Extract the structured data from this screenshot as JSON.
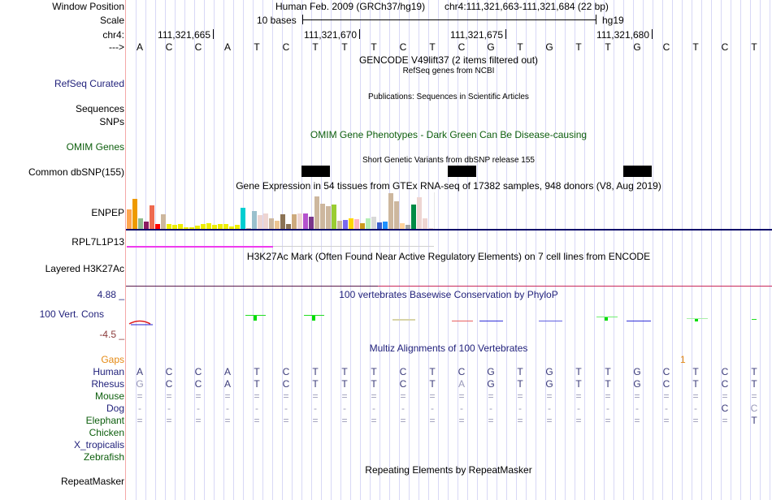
{
  "header": {
    "assembly": "Human Feb. 2009 (GRCh37/hg19)",
    "position": "chr4:111,321,663-111,321,684 (22 bp)",
    "scale_label": "10 bases",
    "scale_db": "hg19"
  },
  "labels": {
    "window_position": "Window Position",
    "scale": "Scale",
    "chrom": "chr4:",
    "strand": "--->",
    "refseq": "RefSeq Curated",
    "sequences": "Sequences",
    "snps": "SNPs",
    "omim": "OMIM Genes",
    "dbsnp": "Common dbSNP(155)",
    "enpep": "ENPEP",
    "rpl": "RPL7L1P13",
    "h3k27ac": "Layered H3K27Ac",
    "cons_max": "4.88 _",
    "cons": "100 Vert. Cons",
    "cons_min": "-4.5 _",
    "repeatmasker": "RepeatMasker"
  },
  "ruler": {
    "ticks": [
      "111,321,665",
      "111,321,670",
      "111,321,675",
      "111,321,680"
    ]
  },
  "sequence": [
    "A",
    "C",
    "C",
    "A",
    "T",
    "C",
    "T",
    "T",
    "T",
    "C",
    "T",
    "C",
    "G",
    "T",
    "G",
    "T",
    "T",
    "G",
    "C",
    "T",
    "C",
    "T"
  ],
  "track_titles": {
    "gencode": "GENCODE V49lift37 (2 items filtered out)",
    "refseq": "RefSeq genes from NCBI",
    "publications": "Publications: Sequences in Scientific Articles",
    "omim": "OMIM Gene Phenotypes - Dark Green Can Be Disease-causing",
    "dbsnp": "Short Genetic Variants from dbSNP release 155",
    "gtex": "Gene Expression in 54 tissues from GTEx RNA-seq of 17382 samples, 948 donors (V8, Aug 2019)",
    "h3k27ac": "H3K27Ac Mark (Often Found Near Active Regulatory Elements) on 7 cell lines from ENCODE",
    "phylop": "100 vertebrates Basewise Conservation by PhyloP",
    "multiz": "Multiz Alignments of 100 Vertebrates",
    "repeatmasker": "Repeating Elements by RepeatMasker"
  },
  "gtex_levels": [
    0.55,
    0.85,
    0.3,
    0.2,
    0.65,
    0.13,
    0.4,
    0.14,
    0.12,
    0.14,
    0.04,
    0.04,
    0.1,
    0.14,
    0.17,
    0.12,
    0.14,
    0.14,
    0.07,
    0.12,
    0.6,
    0.0,
    0.5,
    0.38,
    0.44,
    0.3,
    0.22,
    0.4,
    0.13,
    0.4,
    0.44,
    0.44,
    0.35,
    0.92,
    0.7,
    0.64,
    0.68,
    0.22,
    0.24,
    0.3,
    0.28,
    0.16,
    0.3,
    0.33,
    0.18,
    0.2,
    1.0,
    0.78,
    0.16,
    0.12,
    0.68,
    0.88,
    0.3,
    0.03
  ],
  "gtex_colors": [
    "#FFA54F",
    "#EE9A00",
    "#8FBC8F",
    "#8B1C62",
    "#EE6A50",
    "#FF0000",
    "#CDB79E",
    "#EEEE00",
    "#EEEE00",
    "#EEEE00",
    "#EEEE00",
    "#EEEE00",
    "#EEEE00",
    "#EEEE00",
    "#EEEE00",
    "#EEEE00",
    "#EEEE00",
    "#EEEE00",
    "#EEEE00",
    "#EEEE00",
    "#00CED1",
    "#CDB79E",
    "#9AC0CD",
    "#EED5D2",
    "#EED5D2",
    "#CDB79E",
    "#EEC591",
    "#8B7355",
    "#8B7355",
    "#CDAA7D",
    "#EED5D2",
    "#B452CD",
    "#7A378B",
    "#CDB79E",
    "#CDB79E",
    "#CDB79E",
    "#9ACD32",
    "#CDB79E",
    "#7B68EE",
    "#FFD700",
    "#FFB6C1",
    "#CD9B1D",
    "#B4EEB4",
    "#D9D9D9",
    "#3A5FCD",
    "#1E90FF",
    "#CDB79E",
    "#CDB79E",
    "#FFD39B",
    "#A6A6A6",
    "#008B45",
    "#EED5D2",
    "#EED5D2",
    "#EED5D2"
  ],
  "dbsnp_bases": [
    6,
    11,
    17
  ],
  "multiz": {
    "gaps_label": "Gaps",
    "gaps_marker": "1",
    "species": [
      {
        "name": "Human",
        "seq": [
          "A",
          "C",
          "C",
          "A",
          "T",
          "C",
          "T",
          "T",
          "T",
          "C",
          "T",
          "C",
          "G",
          "T",
          "G",
          "T",
          "T",
          "G",
          "C",
          "T",
          "C",
          "T"
        ]
      },
      {
        "name": "Rhesus",
        "seq": [
          "G",
          "C",
          "C",
          "A",
          "T",
          "C",
          "T",
          "T",
          "T",
          "C",
          "T",
          "A",
          "G",
          "T",
          "G",
          "T",
          "T",
          "G",
          "C",
          "T",
          "C",
          "T"
        ]
      },
      {
        "name": "Mouse",
        "seq": [
          "=",
          "=",
          "=",
          "=",
          "=",
          "=",
          "=",
          "=",
          "=",
          "=",
          "=",
          "=",
          "=",
          "=",
          "=",
          "=",
          "=",
          "=",
          "=",
          "=",
          "=",
          "="
        ]
      },
      {
        "name": "Dog",
        "seq": [
          "-",
          "-",
          "-",
          "-",
          "-",
          "-",
          "-",
          "-",
          "-",
          "-",
          "-",
          "-",
          "-",
          "-",
          "-",
          "-",
          "-",
          "-",
          "-",
          "-",
          "C",
          "C"
        ]
      },
      {
        "name": "Elephant",
        "seq": [
          "=",
          "=",
          "=",
          "=",
          "=",
          "=",
          "=",
          "=",
          "=",
          "=",
          "=",
          "=",
          "=",
          "=",
          "=",
          "=",
          "=",
          "=",
          "=",
          "=",
          "=",
          "T"
        ]
      },
      {
        "name": "Chicken",
        "seq": []
      },
      {
        "name": "X_tropicalis",
        "seq": []
      },
      {
        "name": "Zebrafish",
        "seq": []
      }
    ]
  },
  "colors": {
    "navy": "#1f1f7a",
    "green": "#0d5e0d",
    "orange": "#e58a14",
    "grid": "#d8d8f6",
    "enpep_line": "#0c0c6a",
    "rpl_line": "#ee3bee",
    "h3k_line": "#5a1a4a"
  }
}
